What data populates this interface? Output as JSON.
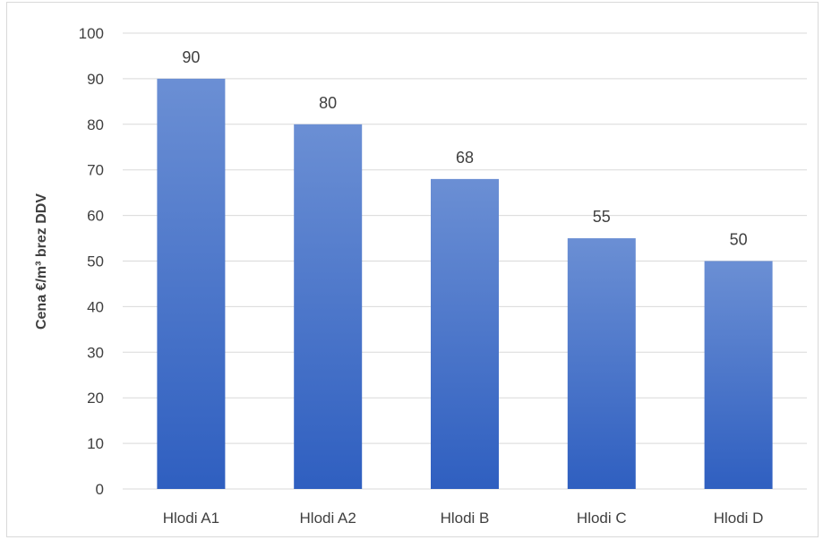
{
  "chart_data": {
    "type": "bar",
    "title": "",
    "xlabel": "",
    "ylabel": "Cena €/m³ brez DDV",
    "categories": [
      "Hlodi A1",
      "Hlodi A2",
      "Hlodi B",
      "Hlodi C",
      "Hlodi D"
    ],
    "values": [
      90,
      80,
      68,
      55,
      50
    ],
    "data_labels": [
      "90",
      "80",
      "68",
      "55",
      "50"
    ],
    "ylim": [
      0,
      100
    ],
    "yticks": [
      0,
      10,
      20,
      30,
      40,
      50,
      60,
      70,
      80,
      90,
      100
    ],
    "ytick_labels": [
      "0",
      "10",
      "20",
      "30",
      "40",
      "50",
      "60",
      "70",
      "80",
      "90",
      "100"
    ],
    "grid": true,
    "legend": "none",
    "colors": {
      "bar_top": "#6b8fd4",
      "bar_bottom": "#2f5fc0",
      "grid": "#d9d9d9",
      "text": "#404040"
    }
  }
}
